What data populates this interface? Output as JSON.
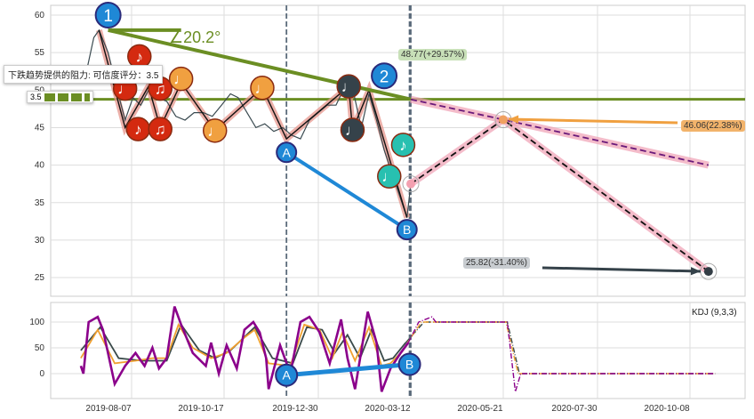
{
  "chart_data": [
    {
      "type": "line",
      "title": "",
      "ylim": [
        22,
        61
      ],
      "y_ticks": [
        25,
        30,
        35,
        40,
        45,
        50,
        55,
        60
      ],
      "grid": true,
      "price": [
        [
          "2019-06-30",
          51
        ],
        [
          "2019-07-04",
          53
        ],
        [
          "2019-07-09",
          57
        ],
        [
          "2019-07-13",
          58
        ],
        [
          "2019-07-20",
          55
        ],
        [
          "2019-07-27",
          50
        ],
        [
          "2019-08-02",
          46
        ],
        [
          "2019-08-08",
          49
        ],
        [
          "2019-08-14",
          48
        ],
        [
          "2019-08-20",
          50
        ],
        [
          "2019-08-27",
          49
        ],
        [
          "2019-09-03",
          48.5
        ],
        [
          "2019-09-10",
          46.5
        ],
        [
          "2019-09-17",
          46
        ],
        [
          "2019-09-24",
          47
        ],
        [
          "2019-10-01",
          47
        ],
        [
          "2019-10-08",
          46.5
        ],
        [
          "2019-10-15",
          48
        ],
        [
          "2019-10-22",
          49.5
        ],
        [
          "2019-10-28",
          49
        ],
        [
          "2019-11-04",
          47
        ],
        [
          "2019-11-11",
          45
        ],
        [
          "2019-11-18",
          45.5
        ],
        [
          "2019-11-25",
          44.5
        ],
        [
          "2019-12-02",
          45
        ],
        [
          "2019-12-09",
          44
        ],
        [
          "2019-12-16",
          43.5
        ],
        [
          "2019-12-23",
          46
        ],
        [
          "2019-12-30",
          47
        ],
        [
          "2020-01-06",
          48
        ],
        [
          "2020-01-13",
          48
        ],
        [
          "2020-01-20",
          50.5
        ],
        [
          "2020-01-27",
          49.5
        ],
        [
          "2020-02-02",
          45
        ],
        [
          "2020-02-08",
          49.5
        ],
        [
          "2020-02-14",
          46
        ],
        [
          "2020-02-20",
          42
        ],
        [
          "2020-02-26",
          39
        ],
        [
          "2020-03-03",
          36
        ],
        [
          "2020-03-09",
          33
        ],
        [
          "2020-03-12",
          37.5
        ]
      ],
      "wave": [
        [
          "2019-07-13",
          58
        ],
        [
          "2019-08-02",
          45
        ],
        [
          "2019-08-20",
          50.5
        ],
        [
          "2019-08-29",
          45
        ],
        [
          "2019-09-14",
          51
        ],
        [
          "2019-10-10",
          44.6
        ],
        [
          "2019-11-16",
          50.3
        ],
        [
          "2019-12-05",
          43.5
        ],
        [
          "2020-01-23",
          50.5
        ],
        [
          "2020-01-26",
          44.7
        ],
        [
          "2020-02-08",
          50
        ],
        [
          "2020-03-09",
          33
        ]
      ],
      "trend_line": [
        [
          "2019-07-20",
          58
        ],
        [
          "2020-03-12",
          48.77
        ]
      ],
      "trend_short": [
        [
          "2019-07-20",
          58
        ],
        [
          "2019-09-14",
          58
        ]
      ],
      "resistance_level": 48.77,
      "angle_label": "∠20.2°",
      "ab_line": {
        "A": [
          "2019-12-05",
          41.7
        ],
        "B": [
          "2020-03-09",
          31.4
        ]
      },
      "vlines": [
        "2019-12-05",
        "2020-03-11",
        "2020-03-12"
      ],
      "projection_upper": [
        [
          "2020-03-12",
          48.77
        ],
        [
          "2020-05-21",
          46.06
        ],
        [
          "2020-10-22",
          40
        ]
      ],
      "projection_lower": [
        [
          "2020-03-12",
          37.5
        ],
        [
          "2020-05-21",
          46.06
        ],
        [
          "2020-10-22",
          25.82
        ]
      ],
      "targets": [
        {
          "text": "48.77(+29.57%)",
          "color": "#c8e0b8"
        },
        {
          "text": "46.06(22.38%)",
          "color": "#f2b36b"
        },
        {
          "text": "25.82(-31.40%)",
          "color": "#c8ccd0"
        }
      ],
      "wave_labels": [
        {
          "t": "1",
          "date": "2019-07-20",
          "v": 60,
          "fill": "#1f88d6",
          "stroke": "#2a2a7a"
        },
        {
          "t": "2",
          "date": "2020-02-20",
          "v": 51.9,
          "fill": "#1f88d6",
          "stroke": "#2a2a7a"
        },
        {
          "t": "A",
          "date": "2019-12-05",
          "v": 41.7,
          "fill": "#1f88d6",
          "stroke": "#2a2a7a"
        },
        {
          "t": "B",
          "date": "2020-03-09",
          "v": 31.4,
          "fill": "#1f88d6",
          "stroke": "#2a2a7a"
        }
      ],
      "notes": [
        {
          "g": "♪",
          "date": "2019-08-13",
          "v": 54.5,
          "fill": "#d42a10"
        },
        {
          "g": "♩",
          "date": "2019-08-02",
          "v": 50.2,
          "fill": "#d42a10"
        },
        {
          "g": "♫",
          "date": "2019-08-29",
          "v": 50.2,
          "fill": "#d42a10"
        },
        {
          "g": "♪",
          "date": "2019-08-12",
          "v": 44.8,
          "fill": "#d42a10"
        },
        {
          "g": "♫",
          "date": "2019-08-29",
          "v": 44.8,
          "fill": "#d42a10"
        },
        {
          "g": "♩",
          "date": "2019-09-14",
          "v": 51.5,
          "fill": "#f0a040"
        },
        {
          "g": "♩",
          "date": "2019-11-16",
          "v": 50.3,
          "fill": "#f0a040"
        },
        {
          "g": "♩",
          "date": "2019-10-10",
          "v": 44.6,
          "fill": "#f0a040"
        },
        {
          "g": "♩",
          "date": "2020-01-23",
          "v": 50.5,
          "fill": "#35424a"
        },
        {
          "g": "♩",
          "date": "2020-01-26",
          "v": 44.7,
          "fill": "#35424a"
        },
        {
          "g": "♪",
          "date": "2020-03-06",
          "v": 42.7,
          "fill": "#28c0b0"
        },
        {
          "g": "♩",
          "date": "2020-02-24",
          "v": 38.5,
          "fill": "#28c0b0"
        }
      ],
      "tooltip": "下跌趋势提供的阻力: 可信度评分：3.5",
      "rating": 3.5
    },
    {
      "type": "line",
      "label": "KDJ (9,3,3)",
      "ylim": [
        -50,
        135
      ],
      "y_ticks": [
        0,
        50,
        100
      ],
      "x_ticks": [
        "2019-08-07",
        "2019-10-17",
        "2019-12-30",
        "2020-03-12",
        "2020-05-21",
        "2020-07-30",
        "2020-10-08"
      ],
      "forecast_start": "2020-03-12",
      "J": [
        [
          "2019-06-29",
          15
        ],
        [
          "2019-07-01",
          0
        ],
        [
          "2019-07-05",
          100
        ],
        [
          "2019-07-12",
          110
        ],
        [
          "2019-07-16",
          85
        ],
        [
          "2019-07-25",
          -20
        ],
        [
          "2019-08-02",
          15
        ],
        [
          "2019-08-10",
          40
        ],
        [
          "2019-08-17",
          15
        ],
        [
          "2019-08-23",
          50
        ],
        [
          "2019-08-28",
          10
        ],
        [
          "2019-09-03",
          30
        ],
        [
          "2019-09-09",
          130
        ],
        [
          "2019-09-14",
          95
        ],
        [
          "2019-09-23",
          40
        ],
        [
          "2019-10-03",
          15
        ],
        [
          "2019-10-07",
          60
        ],
        [
          "2019-10-13",
          0
        ],
        [
          "2019-10-19",
          55
        ],
        [
          "2019-10-27",
          10
        ],
        [
          "2019-11-02",
          85
        ],
        [
          "2019-11-09",
          100
        ],
        [
          "2019-11-14",
          80
        ],
        [
          "2019-11-19",
          30
        ],
        [
          "2019-11-21",
          -30
        ],
        [
          "2019-11-30",
          55
        ],
        [
          "2019-12-08",
          0
        ],
        [
          "2019-12-16",
          100
        ],
        [
          "2019-12-23",
          110
        ],
        [
          "2019-12-31",
          80
        ],
        [
          "2020-01-08",
          20
        ],
        [
          "2020-01-17",
          105
        ],
        [
          "2020-01-22",
          30
        ],
        [
          "2020-01-28",
          -30
        ],
        [
          "2020-02-07",
          120
        ],
        [
          "2020-02-14",
          60
        ],
        [
          "2020-02-18",
          -35
        ],
        [
          "2020-02-25",
          10
        ],
        [
          "2020-03-04",
          40
        ],
        [
          "2020-03-10",
          60
        ],
        [
          "2020-03-18",
          100
        ],
        [
          "2020-03-28",
          110
        ],
        [
          "2020-03-31",
          100
        ],
        [
          "2020-05-24",
          100
        ],
        [
          "2020-05-30",
          -35
        ],
        [
          "2020-06-03",
          0
        ],
        [
          "2020-10-27",
          0
        ]
      ],
      "K": [
        [
          "2019-06-29",
          30
        ],
        [
          "2019-07-12",
          85
        ],
        [
          "2019-07-25",
          20
        ],
        [
          "2019-08-10",
          25
        ],
        [
          "2019-08-23",
          30
        ],
        [
          "2019-09-03",
          30
        ],
        [
          "2019-09-12",
          95
        ],
        [
          "2019-09-23",
          50
        ],
        [
          "2019-10-07",
          30
        ],
        [
          "2019-10-19",
          40
        ],
        [
          "2019-11-02",
          70
        ],
        [
          "2019-11-10",
          85
        ],
        [
          "2019-11-21",
          20
        ],
        [
          "2019-12-08",
          15
        ],
        [
          "2019-12-19",
          95
        ],
        [
          "2019-12-31",
          85
        ],
        [
          "2020-01-10",
          30
        ],
        [
          "2020-01-18",
          80
        ],
        [
          "2020-01-28",
          25
        ],
        [
          "2020-02-08",
          90
        ],
        [
          "2020-02-18",
          15
        ],
        [
          "2020-02-25",
          20
        ],
        [
          "2020-03-04",
          40
        ],
        [
          "2020-03-20",
          100
        ],
        [
          "2020-05-23",
          100
        ],
        [
          "2020-06-01",
          0
        ],
        [
          "2020-10-27",
          0
        ]
      ],
      "D": [
        [
          "2019-06-29",
          45
        ],
        [
          "2019-07-14",
          90
        ],
        [
          "2019-07-28",
          30
        ],
        [
          "2019-08-15",
          25
        ],
        [
          "2019-09-03",
          25
        ],
        [
          "2019-09-14",
          95
        ],
        [
          "2019-09-28",
          45
        ],
        [
          "2019-10-10",
          30
        ],
        [
          "2019-10-22",
          45
        ],
        [
          "2019-11-10",
          90
        ],
        [
          "2019-11-24",
          30
        ],
        [
          "2019-12-10",
          20
        ],
        [
          "2019-12-21",
          90
        ],
        [
          "2020-01-02",
          85
        ],
        [
          "2020-01-12",
          40
        ],
        [
          "2020-01-22",
          75
        ],
        [
          "2020-02-01",
          30
        ],
        [
          "2020-02-10",
          85
        ],
        [
          "2020-02-20",
          25
        ],
        [
          "2020-02-27",
          30
        ],
        [
          "2020-03-08",
          60
        ],
        [
          "2020-03-22",
          100
        ],
        [
          "2020-05-24",
          100
        ],
        [
          "2020-06-02",
          0
        ],
        [
          "2020-10-27",
          0
        ]
      ],
      "ab_line": {
        "A": [
          "2019-12-05",
          -3
        ],
        "B": [
          "2020-03-11",
          18
        ]
      },
      "colors": {
        "J": "#8b008b",
        "K": "#f0a030",
        "D": "#3a4a4a",
        "ab": "#1f88d6",
        "trend": "#6b8e23"
      }
    }
  ]
}
